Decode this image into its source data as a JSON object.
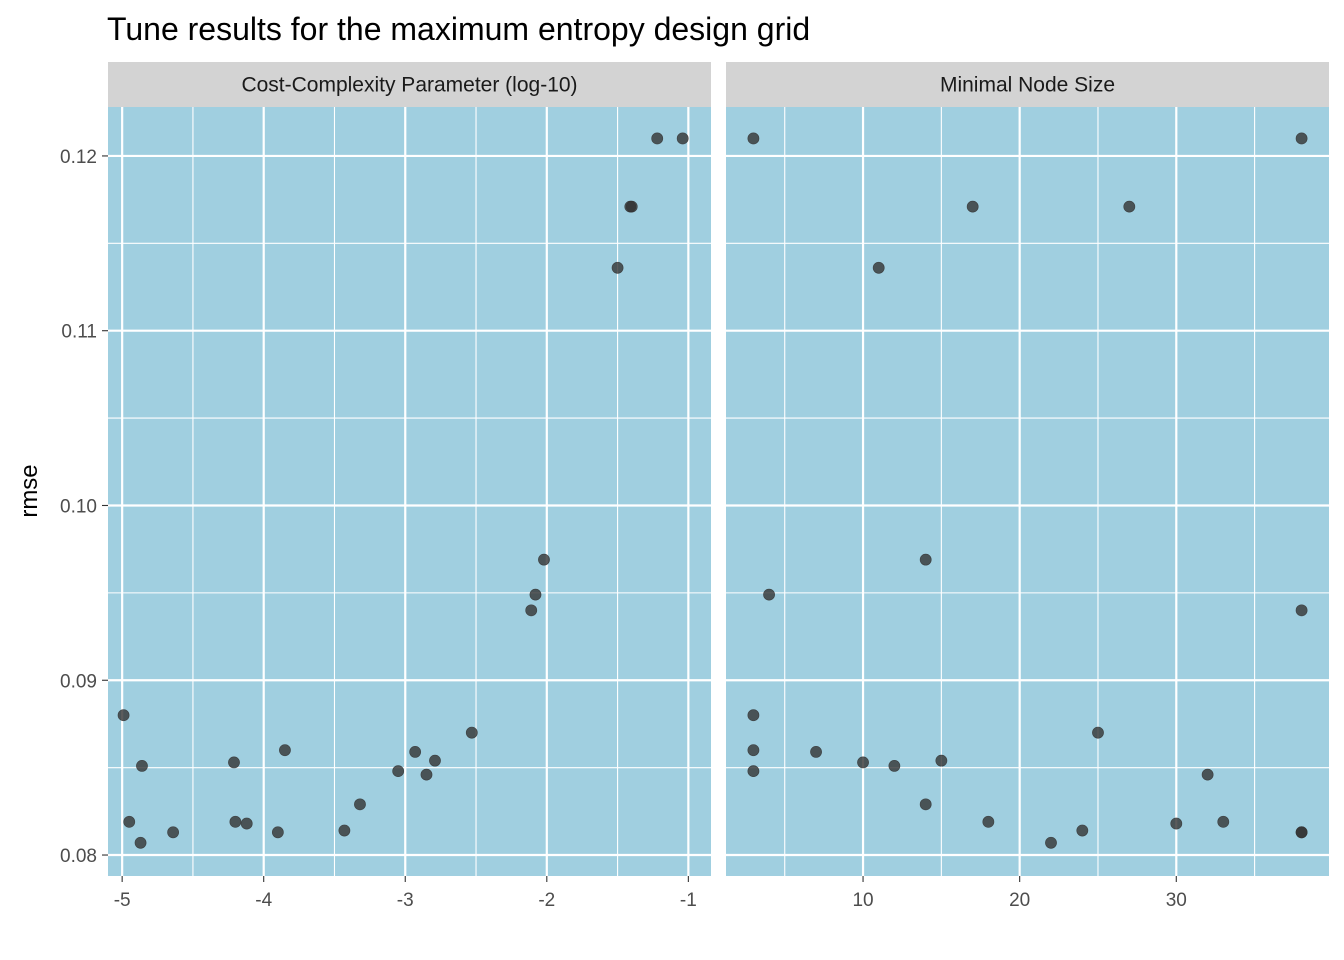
{
  "chart_data": {
    "type": "scatter",
    "title": "Tune results for the maximum entropy design grid",
    "ylabel": "rmse",
    "xlabel": "",
    "ylim": [
      0.0788,
      0.1228
    ],
    "y_ticks": [
      "0.08",
      "0.09",
      "0.10",
      "0.11",
      "0.12"
    ],
    "y_tick_values": [
      0.08,
      0.09,
      0.1,
      0.11,
      0.12
    ],
    "grid": true,
    "panel_background": "#a0cfe0",
    "strip_background": "#d3d3d3",
    "point_color": "#333333",
    "facets": [
      {
        "strip_label": "Cost-Complexity Parameter (log-10)",
        "xlim": [
          -5.1,
          -0.84
        ],
        "x_ticks": [
          "-5",
          "-4",
          "-3",
          "-2",
          "-1"
        ],
        "x_tick_values": [
          -5,
          -4,
          -3,
          -2,
          -1
        ],
        "x_minor": [
          -4.5,
          -3.5,
          -2.5,
          -1.5
        ],
        "points": [
          {
            "x": -4.99,
            "y": 0.088
          },
          {
            "x": -4.95,
            "y": 0.0819
          },
          {
            "x": -4.87,
            "y": 0.0807
          },
          {
            "x": -4.86,
            "y": 0.0851
          },
          {
            "x": -4.64,
            "y": 0.0813
          },
          {
            "x": -4.21,
            "y": 0.0853
          },
          {
            "x": -4.2,
            "y": 0.0819
          },
          {
            "x": -4.12,
            "y": 0.0818
          },
          {
            "x": -3.9,
            "y": 0.0813
          },
          {
            "x": -3.85,
            "y": 0.086
          },
          {
            "x": -3.43,
            "y": 0.0814
          },
          {
            "x": -3.32,
            "y": 0.0829
          },
          {
            "x": -3.05,
            "y": 0.0848
          },
          {
            "x": -2.93,
            "y": 0.0859
          },
          {
            "x": -2.85,
            "y": 0.0846
          },
          {
            "x": -2.79,
            "y": 0.0854
          },
          {
            "x": -2.53,
            "y": 0.087
          },
          {
            "x": -2.11,
            "y": 0.094
          },
          {
            "x": -2.08,
            "y": 0.0949
          },
          {
            "x": -2.02,
            "y": 0.0969
          },
          {
            "x": -1.5,
            "y": 0.1136
          },
          {
            "x": -1.41,
            "y": 0.1171
          },
          {
            "x": -1.4,
            "y": 0.1171
          },
          {
            "x": -1.22,
            "y": 0.121
          },
          {
            "x": -1.04,
            "y": 0.121
          }
        ]
      },
      {
        "strip_label": "Minimal Node Size",
        "xlim": [
          1.25,
          39.75
        ],
        "x_ticks": [
          "10",
          "20",
          "30"
        ],
        "x_tick_values": [
          10,
          20,
          30
        ],
        "x_minor": [
          5,
          15,
          25,
          35
        ],
        "points": [
          {
            "x": 3,
            "y": 0.121
          },
          {
            "x": 3,
            "y": 0.088
          },
          {
            "x": 3,
            "y": 0.086
          },
          {
            "x": 3,
            "y": 0.0848
          },
          {
            "x": 4,
            "y": 0.0949
          },
          {
            "x": 7,
            "y": 0.0859
          },
          {
            "x": 10,
            "y": 0.0853
          },
          {
            "x": 11,
            "y": 0.1136
          },
          {
            "x": 12,
            "y": 0.0851
          },
          {
            "x": 14,
            "y": 0.0969
          },
          {
            "x": 14,
            "y": 0.0829
          },
          {
            "x": 15,
            "y": 0.0854
          },
          {
            "x": 17,
            "y": 0.1171
          },
          {
            "x": 18,
            "y": 0.0819
          },
          {
            "x": 22,
            "y": 0.0807
          },
          {
            "x": 24,
            "y": 0.0814
          },
          {
            "x": 25,
            "y": 0.087
          },
          {
            "x": 27,
            "y": 0.1171
          },
          {
            "x": 30,
            "y": 0.0818
          },
          {
            "x": 32,
            "y": 0.0846
          },
          {
            "x": 33,
            "y": 0.0819
          },
          {
            "x": 38,
            "y": 0.121
          },
          {
            "x": 38,
            "y": 0.094
          },
          {
            "x": 38,
            "y": 0.0813
          },
          {
            "x": 38,
            "y": 0.0813
          }
        ]
      }
    ]
  }
}
